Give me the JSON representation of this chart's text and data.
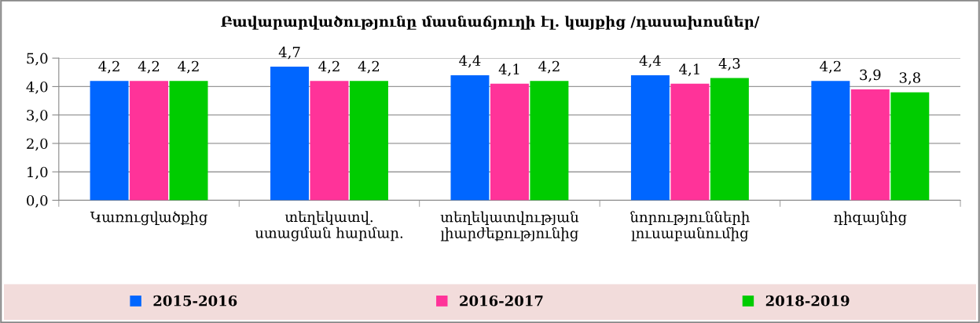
{
  "chart_data": {
    "type": "bar",
    "title": "Բավարարվածությունը մասնաճյուղի էլ. կայքից /դասախոսներ/",
    "categories": [
      "Կառուցվածքից",
      "տեղեկատվ.\nստացման հարմար.",
      "տեղեկատվության\nլիարժեքությունից",
      "նորությունների\nլուսաբանումից",
      "դիզայնից"
    ],
    "series": [
      {
        "name": "2015-2016",
        "color": "#0066ff",
        "values": [
          4.2,
          4.7,
          4.4,
          4.4,
          4.2
        ],
        "value_labels": [
          "4,2",
          "4,7",
          "4,4",
          "4,4",
          "4,2"
        ]
      },
      {
        "name": "2016-2017",
        "color": "#ff3399",
        "values": [
          4.2,
          4.2,
          4.1,
          4.1,
          3.9
        ],
        "value_labels": [
          "4,2",
          "4,2",
          "4,1",
          "4,1",
          "3,9"
        ]
      },
      {
        "name": "2018-2019",
        "color": "#00cc00",
        "values": [
          4.2,
          4.2,
          4.2,
          4.3,
          3.8
        ],
        "value_labels": [
          "4,2",
          "4,2",
          "4,2",
          "4,3",
          "3,8"
        ]
      }
    ],
    "ylim": [
      0,
      5
    ],
    "yticks": [
      {
        "value": 0,
        "label": "0,0"
      },
      {
        "value": 1,
        "label": "1,0"
      },
      {
        "value": 2,
        "label": "2,0"
      },
      {
        "value": 3,
        "label": "3,0"
      },
      {
        "value": 4,
        "label": "4,0"
      },
      {
        "value": 5,
        "label": "5,0"
      }
    ],
    "grid": "y",
    "legend": "bottom"
  }
}
